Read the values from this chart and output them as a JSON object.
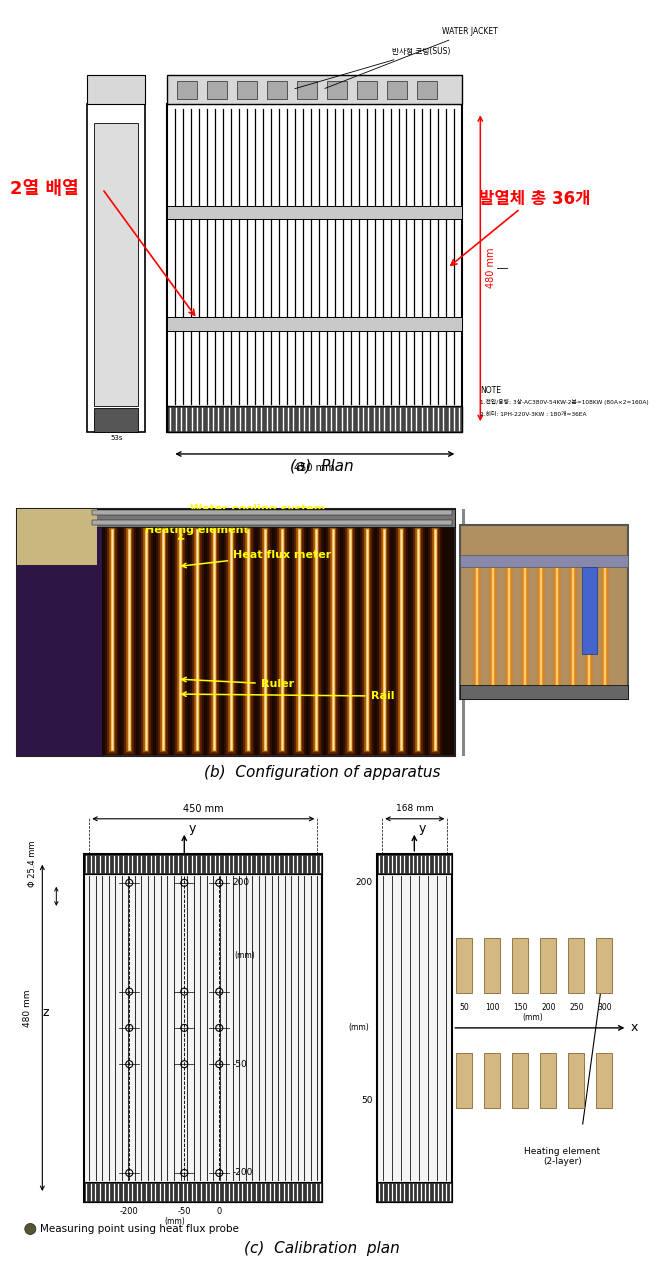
{
  "title_a": "(a)  Plan",
  "title_b": "(b)  Configuration of apparatus",
  "title_c": "(c)  Calibration  plan",
  "label_2row": "2열 배열",
  "label_36": "발열체 총 36개",
  "label_water_jacket": "WATER JACKET",
  "label_reflect": "반사형 코팅(SUS)",
  "note1": "1.전압/용량: 3상-AC380V-54KW-2본=108KW (80A×2=160A)",
  "note2": "2.히터: 1PH-220V-3KW : 180개=36EA",
  "label_water_cooling": "Water cooling system",
  "label_heating": "Heating element",
  "label_heatflux": "Heat flux meter",
  "label_ruler": "Ruler",
  "label_rail": "Rail",
  "label_phi": "Φ 25.4 mm",
  "label_480z": "480 mm",
  "label_450x": "450 mm",
  "label_168": "168 mm",
  "label_measuring": "Measuring point using heat flux probe",
  "label_heating_element": "Heating element\n(2-layer)",
  "bg_color": "#ffffff"
}
